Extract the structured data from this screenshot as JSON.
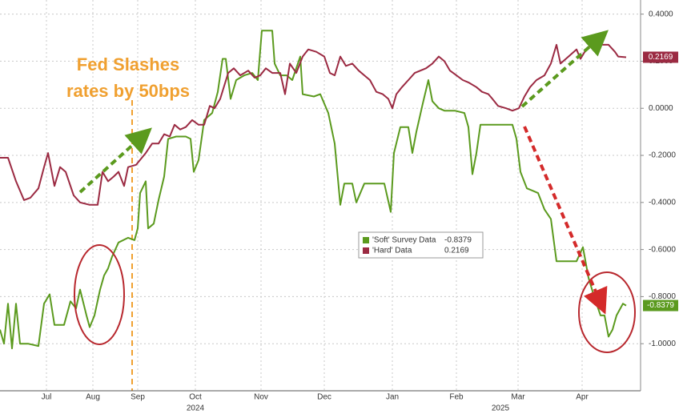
{
  "chart_data": {
    "type": "line",
    "xlim": [
      0,
      320
    ],
    "ylim": [
      -1.2,
      0.46
    ],
    "xticks": [
      {
        "value": 23.2,
        "label": "Jul"
      },
      {
        "value": 46.4,
        "label": "Aug"
      },
      {
        "value": 68.8,
        "label": "Sep"
      },
      {
        "value": 97.6,
        "label": "Oct"
      },
      {
        "value": 130.4,
        "label": "Nov"
      },
      {
        "value": 162,
        "label": "Dec"
      },
      {
        "value": 196,
        "label": "Jan"
      },
      {
        "value": 228,
        "label": "Feb"
      },
      {
        "value": 258.8,
        "label": "Mar"
      },
      {
        "value": 290.8,
        "label": "Apr"
      }
    ],
    "year_labels": [
      {
        "value": 97.6,
        "label": "2024"
      },
      {
        "value": 250,
        "label": "2025"
      }
    ],
    "yticks": [
      {
        "value": 0.4,
        "label": "0.4000"
      },
      {
        "value": 0.2,
        "label": "0.2000"
      },
      {
        "value": 0,
        "label": "0.0000"
      },
      {
        "value": -0.2,
        "label": "-0.2000"
      },
      {
        "value": -0.4,
        "label": "-0.4000"
      },
      {
        "value": -0.6,
        "label": "-0.6000"
      },
      {
        "value": -0.8,
        "label": "-0.8000"
      },
      {
        "value": -1.0,
        "label": "-1.0000"
      }
    ],
    "grid": true,
    "annotation": [
      "Fed Slashes",
      "rates by 50bps"
    ],
    "series": [
      {
        "name": "'Soft' Survey Data",
        "color": "#5b9a1e",
        "last_label": "-0.8379",
        "x": [
          0,
          2,
          4,
          6,
          8,
          10,
          14,
          19.2,
          22,
          24.8,
          27.2,
          32,
          35.2,
          38,
          40,
          43.2,
          44.8,
          47.2,
          50,
          52,
          54,
          56,
          59.2,
          64,
          67.2,
          68.8,
          70,
          72.8,
          74,
          76.8,
          79.2,
          82,
          84,
          88,
          92.8,
          95.2,
          96.8,
          99.2,
          102,
          106,
          108.8,
          111.2,
          112.8,
          115.2,
          118,
          122,
          126,
          128.8,
          130.8,
          136,
          137.2,
          140,
          143.2,
          146,
          150,
          151.2,
          156.8,
          160,
          164,
          167.2,
          170,
          172,
          176,
          178,
          182,
          188,
          192,
          195.2,
          196.8,
          200,
          204,
          206,
          208,
          211.2,
          214,
          216,
          219.2,
          222,
          227.2,
          232,
          234,
          236,
          238,
          240,
          244,
          250,
          256,
          258,
          260,
          263.2,
          266,
          268.8,
          272,
          275.2,
          278,
          284,
          288,
          291.2,
          294,
          296.8,
          300,
          302,
          304,
          306,
          308,
          311.2,
          312.8
        ],
        "values": [
          -0.94,
          -1.0,
          -0.83,
          -1.02,
          -0.83,
          -1.0,
          -1.0,
          -1.01,
          -0.83,
          -0.79,
          -0.92,
          -0.92,
          -0.82,
          -0.85,
          -0.77,
          -0.88,
          -0.93,
          -0.88,
          -0.77,
          -0.71,
          -0.68,
          -0.63,
          -0.57,
          -0.55,
          -0.56,
          -0.51,
          -0.36,
          -0.31,
          -0.51,
          -0.49,
          -0.39,
          -0.29,
          -0.13,
          -0.12,
          -0.12,
          -0.13,
          -0.27,
          -0.22,
          -0.05,
          -0.02,
          0.07,
          0.21,
          0.21,
          0.04,
          0.12,
          0.14,
          0.15,
          0.12,
          0.33,
          0.33,
          0.19,
          0.14,
          0.14,
          0.12,
          0.22,
          0.06,
          0.05,
          0.06,
          -0.02,
          -0.15,
          -0.41,
          -0.32,
          -0.32,
          -0.4,
          -0.32,
          -0.32,
          -0.32,
          -0.44,
          -0.19,
          -0.08,
          -0.08,
          -0.19,
          -0.1,
          0.02,
          0.12,
          0.03,
          0.0,
          -0.01,
          -0.01,
          -0.02,
          -0.08,
          -0.28,
          -0.19,
          -0.07,
          -0.07,
          -0.07,
          -0.07,
          -0.13,
          -0.27,
          -0.34,
          -0.35,
          -0.36,
          -0.43,
          -0.47,
          -0.65,
          -0.65,
          -0.65,
          -0.59,
          -0.72,
          -0.8,
          -0.88,
          -0.88,
          -0.97,
          -0.94,
          -0.88,
          -0.83,
          -0.8379
        ]
      },
      {
        "name": "'Hard' Data",
        "color": "#9b2a42",
        "last_label": "0.2169",
        "x": [
          0,
          4,
          8,
          12,
          15.2,
          19.2,
          22,
          24,
          27.2,
          30,
          32.8,
          36.8,
          40,
          44.8,
          48.8,
          51.2,
          54,
          56.8,
          59.2,
          62,
          64,
          68,
          72.8,
          76,
          79.2,
          82,
          84.8,
          87.2,
          90,
          92.8,
          96,
          99.2,
          102,
          104.8,
          107.2,
          110,
          114,
          116.8,
          120,
          124,
          127.2,
          130,
          132.8,
          136,
          140,
          142.4,
          144.8,
          148,
          151.2,
          154,
          158,
          162,
          164.8,
          167.2,
          170,
          172.8,
          176,
          179.2,
          182,
          184.8,
          188,
          191.2,
          194,
          196,
          198,
          200.8,
          204,
          207.2,
          210,
          212.8,
          216,
          219.2,
          222,
          224.8,
          228,
          231.2,
          234,
          238,
          240.8,
          244,
          246,
          248.8,
          252.8,
          256,
          259.2,
          262,
          264.8,
          268,
          272,
          275.2,
          278,
          280,
          284,
          288,
          290,
          292.8,
          296.8,
          300,
          304,
          307.2,
          308.8,
          312.8
        ],
        "values": [
          -0.21,
          -0.21,
          -0.31,
          -0.39,
          -0.38,
          -0.34,
          -0.25,
          -0.19,
          -0.33,
          -0.25,
          -0.27,
          -0.37,
          -0.4,
          -0.41,
          -0.41,
          -0.27,
          -0.31,
          -0.29,
          -0.27,
          -0.33,
          -0.25,
          -0.24,
          -0.19,
          -0.15,
          -0.15,
          -0.11,
          -0.12,
          -0.07,
          -0.09,
          -0.08,
          -0.05,
          -0.07,
          -0.07,
          0.01,
          0.0,
          0.04,
          0.15,
          0.17,
          0.14,
          0.16,
          0.13,
          0.14,
          0.17,
          0.15,
          0.15,
          0.06,
          0.19,
          0.15,
          0.22,
          0.25,
          0.24,
          0.22,
          0.15,
          0.14,
          0.22,
          0.18,
          0.19,
          0.16,
          0.14,
          0.12,
          0.07,
          0.06,
          0.04,
          0.0,
          0.06,
          0.09,
          0.12,
          0.15,
          0.16,
          0.17,
          0.19,
          0.22,
          0.2,
          0.16,
          0.14,
          0.12,
          0.11,
          0.09,
          0.07,
          0.06,
          0.04,
          0.01,
          0.0,
          -0.01,
          0.0,
          0.05,
          0.09,
          0.12,
          0.14,
          0.19,
          0.27,
          0.19,
          0.22,
          0.25,
          0.21,
          0.25,
          0.28,
          0.27,
          0.27,
          0.24,
          0.22,
          0.2169
        ]
      }
    ]
  }
}
